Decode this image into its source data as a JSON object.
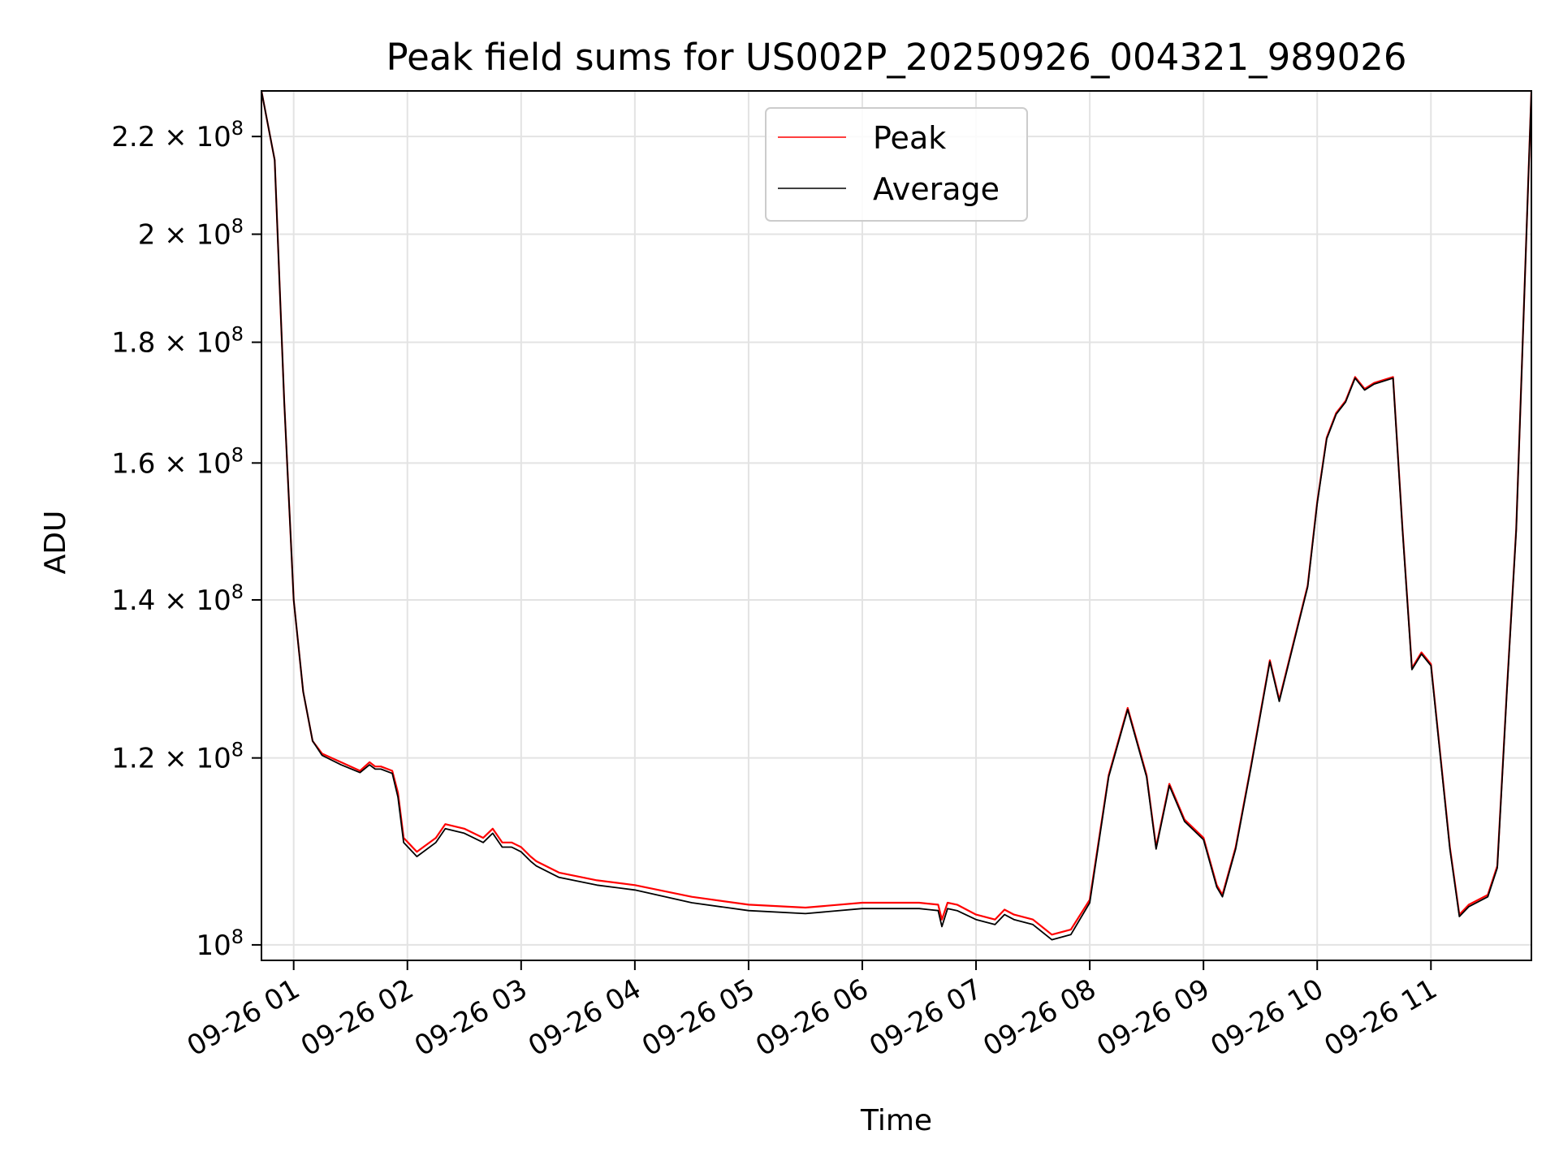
{
  "chart_data": {
    "type": "line",
    "title": "Peak field sums for US002P_20250926_004321_989026",
    "xlabel": "Time",
    "ylabel": "ADU",
    "y_scale": "log",
    "ylim": [
      98500000,
      230000000
    ],
    "xlim": [
      "2025-09-26 00:43",
      "2025-09-26 11:53"
    ],
    "grid": true,
    "legend_position": "top-center",
    "x_ticks": [
      {
        "value": "2025-09-26 01:00",
        "label": "09-26 01"
      },
      {
        "value": "2025-09-26 02:00",
        "label": "09-26 02"
      },
      {
        "value": "2025-09-26 03:00",
        "label": "09-26 03"
      },
      {
        "value": "2025-09-26 04:00",
        "label": "09-26 04"
      },
      {
        "value": "2025-09-26 05:00",
        "label": "09-26 05"
      },
      {
        "value": "2025-09-26 06:00",
        "label": "09-26 06"
      },
      {
        "value": "2025-09-26 07:00",
        "label": "09-26 07"
      },
      {
        "value": "2025-09-26 08:00",
        "label": "09-26 08"
      },
      {
        "value": "2025-09-26 09:00",
        "label": "09-26 09"
      },
      {
        "value": "2025-09-26 10:00",
        "label": "09-26 10"
      },
      {
        "value": "2025-09-26 11:00",
        "label": "09-26 11"
      }
    ],
    "y_ticks": [
      {
        "value": 100000000,
        "mant": "",
        "exp": "8"
      },
      {
        "value": 120000000,
        "mant": "1.2",
        "exp": "8"
      },
      {
        "value": 140000000,
        "mant": "1.4",
        "exp": "8"
      },
      {
        "value": 160000000,
        "mant": "1.6",
        "exp": "8"
      },
      {
        "value": 180000000,
        "mant": "1.8",
        "exp": "8"
      },
      {
        "value": 200000000,
        "mant": "2",
        "exp": "8"
      },
      {
        "value": 220000000,
        "mant": "2.2",
        "exp": "8"
      }
    ],
    "y_tick_times": "×",
    "y_tick_base": "10",
    "series": [
      {
        "name": "Peak",
        "color": "#ff0000",
        "x": [
          "2025-09-26 00:43",
          "2025-09-26 00:50",
          "2025-09-26 00:55",
          "2025-09-26 01:00",
          "2025-09-26 01:05",
          "2025-09-26 01:10",
          "2025-09-26 01:15",
          "2025-09-26 01:25",
          "2025-09-26 01:35",
          "2025-09-26 01:40",
          "2025-09-26 01:43",
          "2025-09-26 01:46",
          "2025-09-26 01:52",
          "2025-09-26 01:55",
          "2025-09-26 01:58",
          "2025-09-26 02:05",
          "2025-09-26 02:15",
          "2025-09-26 02:20",
          "2025-09-26 02:30",
          "2025-09-26 02:40",
          "2025-09-26 02:45",
          "2025-09-26 02:50",
          "2025-09-26 02:55",
          "2025-09-26 03:00",
          "2025-09-26 03:05",
          "2025-09-26 03:08",
          "2025-09-26 03:20",
          "2025-09-26 03:40",
          "2025-09-26 04:00",
          "2025-09-26 04:30",
          "2025-09-26 05:00",
          "2025-09-26 05:30",
          "2025-09-26 06:00",
          "2025-09-26 06:30",
          "2025-09-26 06:40",
          "2025-09-26 06:42",
          "2025-09-26 06:45",
          "2025-09-26 06:50",
          "2025-09-26 07:00",
          "2025-09-26 07:10",
          "2025-09-26 07:15",
          "2025-09-26 07:20",
          "2025-09-26 07:30",
          "2025-09-26 07:40",
          "2025-09-26 07:50",
          "2025-09-26 08:00",
          "2025-09-26 08:10",
          "2025-09-26 08:20",
          "2025-09-26 08:30",
          "2025-09-26 08:35",
          "2025-09-26 08:42",
          "2025-09-26 08:50",
          "2025-09-26 09:00",
          "2025-09-26 09:07",
          "2025-09-26 09:10",
          "2025-09-26 09:17",
          "2025-09-26 09:25",
          "2025-09-26 09:35",
          "2025-09-26 09:40",
          "2025-09-26 09:55",
          "2025-09-26 10:00",
          "2025-09-26 10:05",
          "2025-09-26 10:10",
          "2025-09-26 10:15",
          "2025-09-26 10:20",
          "2025-09-26 10:25",
          "2025-09-26 10:30",
          "2025-09-26 10:40",
          "2025-09-26 10:45",
          "2025-09-26 10:50",
          "2025-09-26 10:55",
          "2025-09-26 11:00",
          "2025-09-26 11:10",
          "2025-09-26 11:15",
          "2025-09-26 11:20",
          "2025-09-26 11:30",
          "2025-09-26 11:35",
          "2025-09-26 11:40",
          "2025-09-26 11:45",
          "2025-09-26 11:53"
        ],
        "y": [
          230000000,
          215000000,
          170000000,
          140000000,
          128000000,
          122000000,
          120500000,
          119500000,
          118500000,
          119500000,
          119000000,
          119000000,
          118500000,
          116000000,
          111000000,
          109500000,
          111000000,
          112500000,
          112000000,
          111000000,
          112000000,
          110500000,
          110500000,
          110000000,
          109000000,
          108500000,
          107300000,
          106500000,
          106000000,
          104800000,
          104000000,
          103700000,
          104200000,
          104200000,
          104000000,
          102500000,
          104200000,
          104000000,
          103000000,
          102500000,
          103500000,
          103000000,
          102500000,
          101000000,
          101500000,
          104500000,
          118000000,
          126000000,
          118000000,
          110000000,
          117000000,
          113000000,
          111000000,
          106000000,
          105000000,
          110000000,
          119000000,
          132000000,
          127000000,
          142000000,
          154000000,
          164000000,
          168000000,
          170000000,
          174000000,
          172000000,
          173000000,
          174000000,
          150000000,
          131000000,
          133000000,
          131500000,
          110000000,
          103000000,
          104000000,
          105000000,
          108000000,
          128000000,
          150000000,
          230000000
        ]
      },
      {
        "name": "Average",
        "color": "#000000",
        "x": [
          "2025-09-26 00:43",
          "2025-09-26 00:50",
          "2025-09-26 00:55",
          "2025-09-26 01:00",
          "2025-09-26 01:05",
          "2025-09-26 01:10",
          "2025-09-26 01:15",
          "2025-09-26 01:25",
          "2025-09-26 01:35",
          "2025-09-26 01:40",
          "2025-09-26 01:43",
          "2025-09-26 01:46",
          "2025-09-26 01:52",
          "2025-09-26 01:55",
          "2025-09-26 01:58",
          "2025-09-26 02:05",
          "2025-09-26 02:15",
          "2025-09-26 02:20",
          "2025-09-26 02:30",
          "2025-09-26 02:40",
          "2025-09-26 02:45",
          "2025-09-26 02:50",
          "2025-09-26 02:55",
          "2025-09-26 03:00",
          "2025-09-26 03:05",
          "2025-09-26 03:08",
          "2025-09-26 03:20",
          "2025-09-26 03:40",
          "2025-09-26 04:00",
          "2025-09-26 04:30",
          "2025-09-26 05:00",
          "2025-09-26 05:30",
          "2025-09-26 06:00",
          "2025-09-26 06:30",
          "2025-09-26 06:40",
          "2025-09-26 06:42",
          "2025-09-26 06:45",
          "2025-09-26 06:50",
          "2025-09-26 07:00",
          "2025-09-26 07:10",
          "2025-09-26 07:15",
          "2025-09-26 07:20",
          "2025-09-26 07:30",
          "2025-09-26 07:40",
          "2025-09-26 07:50",
          "2025-09-26 08:00",
          "2025-09-26 08:10",
          "2025-09-26 08:20",
          "2025-09-26 08:30",
          "2025-09-26 08:35",
          "2025-09-26 08:42",
          "2025-09-26 08:50",
          "2025-09-26 09:00",
          "2025-09-26 09:07",
          "2025-09-26 09:10",
          "2025-09-26 09:17",
          "2025-09-26 09:25",
          "2025-09-26 09:35",
          "2025-09-26 09:40",
          "2025-09-26 09:55",
          "2025-09-26 10:00",
          "2025-09-26 10:05",
          "2025-09-26 10:10",
          "2025-09-26 10:15",
          "2025-09-26 10:20",
          "2025-09-26 10:25",
          "2025-09-26 10:30",
          "2025-09-26 10:40",
          "2025-09-26 10:45",
          "2025-09-26 10:50",
          "2025-09-26 10:55",
          "2025-09-26 11:00",
          "2025-09-26 11:10",
          "2025-09-26 11:15",
          "2025-09-26 11:20",
          "2025-09-26 11:30",
          "2025-09-26 11:35",
          "2025-09-26 11:40",
          "2025-09-26 11:45",
          "2025-09-26 11:53"
        ],
        "y": [
          230000000,
          215000000,
          170000000,
          140000000,
          128000000,
          122000000,
          120300000,
          119200000,
          118300000,
          119200000,
          118700000,
          118700000,
          118200000,
          115500000,
          110500000,
          109000000,
          110500000,
          112000000,
          111500000,
          110500000,
          111500000,
          110000000,
          110000000,
          109500000,
          108500000,
          108000000,
          106800000,
          106000000,
          105500000,
          104200000,
          103400000,
          103100000,
          103600000,
          103600000,
          103400000,
          101800000,
          103600000,
          103400000,
          102500000,
          102000000,
          103000000,
          102500000,
          102000000,
          100500000,
          101000000,
          104200000,
          117800000,
          125800000,
          117800000,
          109800000,
          116800000,
          112800000,
          110800000,
          105800000,
          104800000,
          109800000,
          118800000,
          131800000,
          126800000,
          141800000,
          153800000,
          163800000,
          167800000,
          169800000,
          173800000,
          171800000,
          172800000,
          173800000,
          149800000,
          130800000,
          132800000,
          131300000,
          109800000,
          102800000,
          103800000,
          104800000,
          107800000,
          127800000,
          149800000,
          230000000
        ]
      }
    ]
  }
}
